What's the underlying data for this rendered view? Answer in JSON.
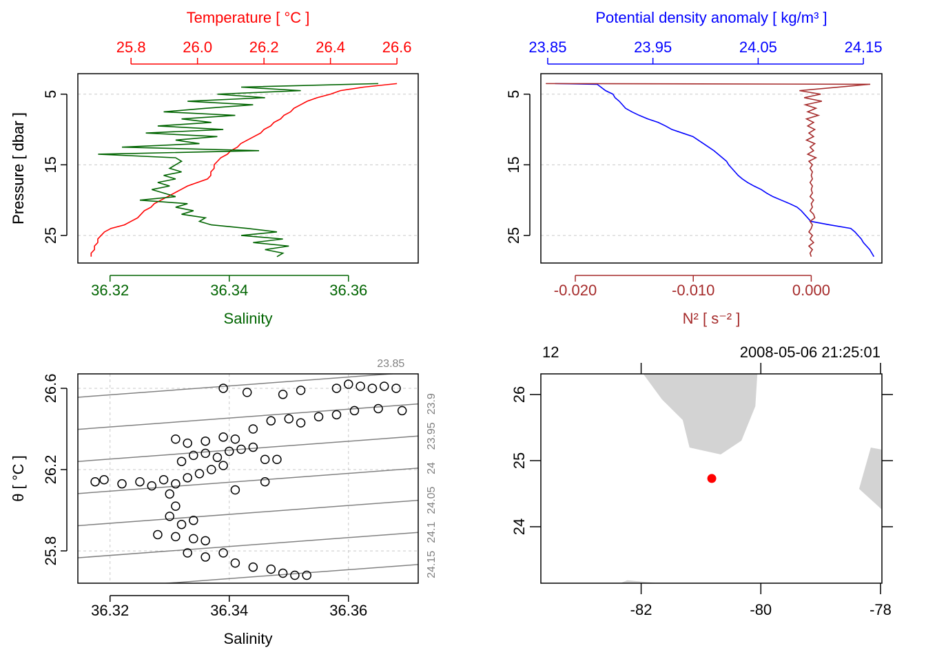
{
  "chart_data": [
    {
      "type": "profile",
      "x2label": "Temperature [ °C ]",
      "xlabel": "Salinity",
      "ylabel": "Pressure [ dbar ]",
      "ylim": [
        28.9,
        2.1
      ],
      "yticks": [
        5,
        15,
        25
      ],
      "grid": true,
      "x2lim": [
        25.64,
        26.664
      ],
      "x2ticks": [
        25.8,
        {
          "value": 26,
          "label": "26.0"
        },
        26.2,
        26.4,
        26.6
      ],
      "xlim": [
        36.3146,
        36.3717
      ],
      "xticks": [
        36.32,
        36.34,
        36.36
      ],
      "y": [
        3.5,
        4,
        4.5,
        5,
        5.5,
        6,
        6.5,
        7,
        7.5,
        8,
        8.5,
        9,
        9.5,
        10,
        10.5,
        11,
        11.5,
        12,
        12.5,
        13,
        13.5,
        14,
        14.5,
        15,
        15.5,
        16,
        16.5,
        17,
        17.5,
        18,
        18.5,
        19,
        19.5,
        20,
        20.5,
        21,
        21.5,
        22,
        22.5,
        23,
        23.5,
        24,
        24.5,
        25,
        25.5,
        26,
        26.5,
        27,
        27.5,
        28
      ],
      "series": [
        {
          "color": "#ff0000",
          "axis": "x2",
          "values": [
            26.6,
            26.5,
            26.43,
            26.4,
            26.36,
            26.33,
            26.31,
            26.29,
            26.28,
            26.26,
            26.25,
            26.23,
            26.22,
            26.2,
            26.19,
            26.17,
            26.15,
            26.13,
            26.12,
            26.1,
            26.09,
            26.07,
            26.06,
            26.05,
            26.05,
            26.04,
            26.04,
            26.03,
            26.0,
            25.97,
            25.95,
            25.93,
            25.91,
            25.89,
            25.87,
            25.86,
            25.84,
            25.83,
            25.82,
            25.8,
            25.78,
            25.74,
            25.72,
            25.71,
            25.7,
            25.7,
            25.69,
            25.69,
            25.68,
            25.68
          ]
        },
        {
          "color": "#006400",
          "values": [
            36.365,
            36.342,
            36.352,
            36.338,
            36.346,
            36.333,
            36.344,
            36.336,
            36.329,
            36.341,
            36.332,
            36.337,
            36.328,
            36.339,
            36.326,
            36.338,
            36.331,
            36.335,
            36.322,
            36.345,
            36.318,
            36.331,
            36.332,
            36.331,
            36.33,
            36.332,
            36.329,
            36.331,
            36.328,
            36.33,
            36.327,
            36.329,
            36.331,
            36.325,
            36.333,
            36.331,
            36.334,
            36.332,
            36.336,
            36.335,
            36.337,
            36.343,
            36.348,
            36.342,
            36.349,
            36.344,
            36.35,
            36.346,
            36.349,
            36.348
          ]
        }
      ]
    },
    {
      "type": "profile",
      "x2label": "Potential density anomaly [ kg/m³ ]",
      "xlabel": "N² [ s⁻² ]",
      "ylabel": "Pressure [ dbar ]",
      "ylim": [
        28.9,
        2.1
      ],
      "yticks": [
        5,
        15,
        25
      ],
      "grid": true,
      "x2lim": [
        23.8435,
        24.1676
      ],
      "x2ticks": [
        23.85,
        23.95,
        24.05,
        24.15
      ],
      "xlim": [
        -0.02292,
        0.00599
      ],
      "xticks": [
        {
          "value": -0.02,
          "label": "-0.020"
        },
        {
          "value": -0.01,
          "label": "-0.010"
        },
        {
          "value": 0,
          "label": "0.000"
        }
      ],
      "y": [
        3.5,
        3.6,
        4.5,
        5,
        5.5,
        6,
        6.5,
        7,
        7.5,
        8,
        8.5,
        9,
        9.5,
        10,
        10.5,
        11,
        11.5,
        12,
        12.5,
        13,
        13.5,
        14,
        14.5,
        15,
        15.5,
        16,
        16.5,
        17,
        17.5,
        18,
        18.5,
        19,
        19.5,
        20,
        20.5,
        21,
        21.5,
        22,
        22.5,
        23,
        23.5,
        24,
        24.5,
        25,
        25.5,
        26,
        26.5,
        27,
        27.5,
        28
      ],
      "series": [
        {
          "color": "#0000ff",
          "axis": "x2",
          "values": [
            23.857,
            23.897,
            23.905,
            23.912,
            23.914,
            23.918,
            23.921,
            23.924,
            23.93,
            23.937,
            23.945,
            23.955,
            23.962,
            23.968,
            23.978,
            23.988,
            23.993,
            23.998,
            24.003,
            24.008,
            24.012,
            24.016,
            24.02,
            24.022,
            24.025,
            24.028,
            24.031,
            24.035,
            24.04,
            24.046,
            24.053,
            24.058,
            24.064,
            24.072,
            24.08,
            24.087,
            24.091,
            24.094,
            24.097,
            24.1,
            24.118,
            24.138,
            24.142,
            24.145,
            24.148,
            24.15,
            24.153,
            24.156,
            24.158,
            24.16
          ]
        },
        {
          "color": "#a52a2a",
          "values": [
            -0.0225,
            0.005,
            -0.001,
            0.0008,
            -0.0006,
            0.0009,
            -0.0005,
            0.0004,
            -0.0003,
            0.0006,
            -0.0004,
            0.0002,
            -0.0003,
            0.0003,
            -0.0002,
            0.0002,
            -0.0004,
            0.0003,
            -0.0001,
            0.0002,
            -0.0003,
            0.0004,
            -0.0002,
            0.0001,
            -0.0001,
            0.0001,
            0,
            0.0001,
            -0.0001,
            0.0001,
            0,
            0.0001,
            -0.0001,
            0.0002,
            0,
            0.0001,
            -0.0001,
            0.0002,
            0.0003,
            -0.0001,
            0.0001,
            0,
            -0.0002,
            0.0001,
            -0.0001,
            0.0002,
            -0.0002,
            0.0001,
            -0.0001,
            0
          ]
        }
      ]
    },
    {
      "type": "scatter",
      "xlabel": "Salinity",
      "ylabel": "θ [ °C ]",
      "grid": true,
      "xlim": [
        36.3146,
        36.3717
      ],
      "xticks": [
        36.32,
        36.34,
        36.36
      ],
      "ylim": [
        25.641,
        26.671
      ],
      "yticks": [
        25.8,
        26.2,
        26.6
      ],
      "isopycnals": [
        23.85,
        23.9,
        23.95,
        24,
        24.05,
        24.1,
        24.15
      ],
      "isopycnal_color": "#808080",
      "x": [
        36.3175,
        36.319,
        36.322,
        36.325,
        36.327,
        36.329,
        36.331,
        36.333,
        36.335,
        36.337,
        36.339,
        36.332,
        36.334,
        36.336,
        36.338,
        36.34,
        36.342,
        36.344,
        36.346,
        36.348,
        36.331,
        36.333,
        36.336,
        36.339,
        36.341,
        36.344,
        36.347,
        36.35,
        36.352,
        36.355,
        36.358,
        36.361,
        36.365,
        36.369,
        36.358,
        36.36,
        36.362,
        36.364,
        36.366,
        36.368,
        36.339,
        36.343,
        36.349,
        36.352,
        36.33,
        36.331,
        36.33,
        36.332,
        36.334,
        36.328,
        36.331,
        36.334,
        36.336,
        36.333,
        36.336,
        36.339,
        36.341,
        36.344,
        36.347,
        36.349,
        36.351,
        36.353,
        36.346,
        36.341
      ],
      "y": [
        26.14,
        26.15,
        26.13,
        26.14,
        26.12,
        26.15,
        26.13,
        26.16,
        26.18,
        26.2,
        26.22,
        26.24,
        26.27,
        26.28,
        26.26,
        26.29,
        26.3,
        26.31,
        26.25,
        26.25,
        26.35,
        26.33,
        26.34,
        26.36,
        26.35,
        26.4,
        26.44,
        26.45,
        26.43,
        26.46,
        26.47,
        26.49,
        26.5,
        26.49,
        26.6,
        26.62,
        26.61,
        26.6,
        26.61,
        26.6,
        26.6,
        26.58,
        26.57,
        26.59,
        26.08,
        26.02,
        25.97,
        25.93,
        25.95,
        25.88,
        25.87,
        25.86,
        25.85,
        25.79,
        25.77,
        25.79,
        25.74,
        25.72,
        25.71,
        25.69,
        25.68,
        25.68,
        26.14,
        26.1
      ]
    },
    {
      "type": "map",
      "station": "12",
      "time": "2008-05-06 21:25:01",
      "xlim": [
        -83.676,
        -77.977
      ],
      "xticks": [
        -82,
        -80,
        -78
      ],
      "ylim": [
        23.146,
        26.3125
      ],
      "yticks": [
        24,
        25,
        26
      ],
      "station_lon": -80.82,
      "station_lat": 24.73,
      "color": "#ff0000",
      "land_color": "#d3d3d3",
      "land": [
        {
          "lon": [
            -81.965,
            -81.653,
            -81.306,
            -81.191,
            -80.671,
            -80.324,
            -80.092,
            -80.058
          ],
          "lat": [
            26.3125,
            25.927,
            25.615,
            25.198,
            25.094,
            25.302,
            25.823,
            26.3125
          ]
        },
        {
          "lon": [
            -78.162,
            -77.977,
            -77.977,
            -78.358
          ],
          "lat": [
            25.198,
            25.167,
            24.26,
            24.573
          ]
        },
        {
          "lon": [
            -82.347,
            -82.231,
            -81.711
          ],
          "lat": [
            23.146,
            23.19,
            23.146
          ]
        }
      ]
    }
  ]
}
